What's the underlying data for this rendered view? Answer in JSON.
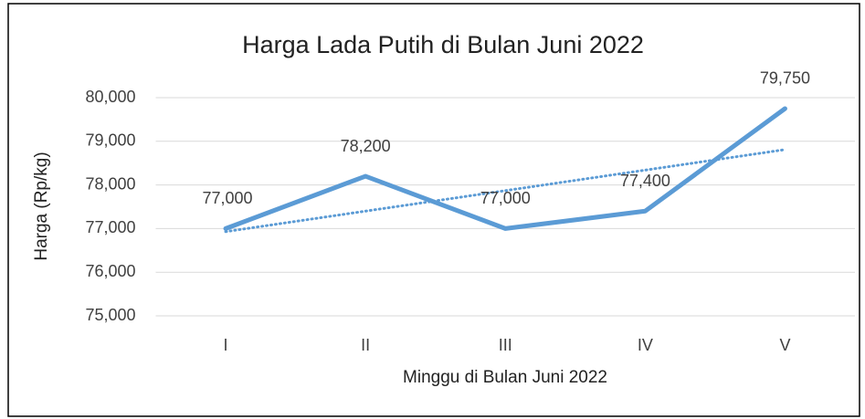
{
  "chart_data": {
    "type": "line",
    "title": "Harga Lada Putih di Bulan Juni 2022",
    "xlabel": "Minggu di Bulan Juni 2022",
    "ylabel": "Harga (Rp/kg)",
    "categories": [
      "I",
      "II",
      "III",
      "IV",
      "V"
    ],
    "series": [
      {
        "name": "Harga",
        "color": "#5b9bd5",
        "values": [
          77000,
          78200,
          77000,
          77400,
          79750
        ],
        "value_labels": [
          "77,000",
          "78,200",
          "77,000",
          "77,400",
          "79,750"
        ],
        "trendline": "linear"
      }
    ],
    "ylim": [
      75000,
      80000
    ],
    "yticks": [
      {
        "value": 75000,
        "label": "75,000"
      },
      {
        "value": 76000,
        "label": "76,000"
      },
      {
        "value": 77000,
        "label": "77,000"
      },
      {
        "value": 78000,
        "label": "78,000"
      },
      {
        "value": 79000,
        "label": "79,000"
      },
      {
        "value": 80000,
        "label": "80,000"
      }
    ],
    "grid": true
  }
}
